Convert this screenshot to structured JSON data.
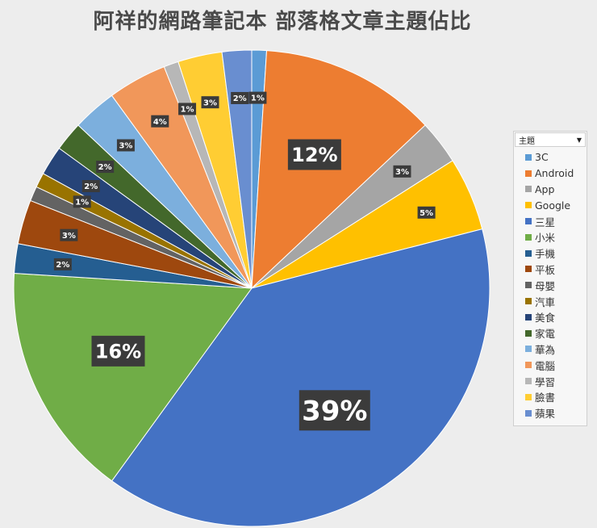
{
  "chart_data": {
    "type": "pie",
    "title": "阿祥的網路筆記本  部落格文章主題佔比",
    "legend": {
      "title": "主題",
      "position": "right"
    },
    "slices": [
      {
        "name": "3C",
        "value": 1,
        "label": "1%",
        "color": "#5b9bd5"
      },
      {
        "name": "Android",
        "value": 12,
        "label": "12%",
        "color": "#ed7d31"
      },
      {
        "name": "App",
        "value": 3,
        "label": "3%",
        "color": "#a5a5a5"
      },
      {
        "name": "Google",
        "value": 5,
        "label": "5%",
        "color": "#ffc000"
      },
      {
        "name": "三星",
        "value": 39,
        "label": "39%",
        "color": "#4472c4"
      },
      {
        "name": "小米",
        "value": 16,
        "label": "16%",
        "color": "#70ad47"
      },
      {
        "name": "手機",
        "value": 2,
        "label": "2%",
        "color": "#255e91"
      },
      {
        "name": "平板",
        "value": 3,
        "label": "3%",
        "color": "#9e480e"
      },
      {
        "name": "母嬰",
        "value": 1,
        "label": "",
        "color": "#636363"
      },
      {
        "name": "汽車",
        "value": 1,
        "label": "1%",
        "color": "#997300"
      },
      {
        "name": "美食",
        "value": 2,
        "label": "2%",
        "color": "#264478"
      },
      {
        "name": "家電",
        "value": 2,
        "label": "2%",
        "color": "#43682b"
      },
      {
        "name": "華為",
        "value": 3,
        "label": "3%",
        "color": "#7cafdd"
      },
      {
        "name": "電腦",
        "value": 4,
        "label": "4%",
        "color": "#f1975a"
      },
      {
        "name": "學習",
        "value": 1,
        "label": "1%",
        "color": "#b7b7b7"
      },
      {
        "name": "臉書",
        "value": 3,
        "label": "3%",
        "color": "#ffcd33"
      },
      {
        "name": "蘋果",
        "value": 2,
        "label": "2%",
        "color": "#698ed0"
      }
    ]
  }
}
